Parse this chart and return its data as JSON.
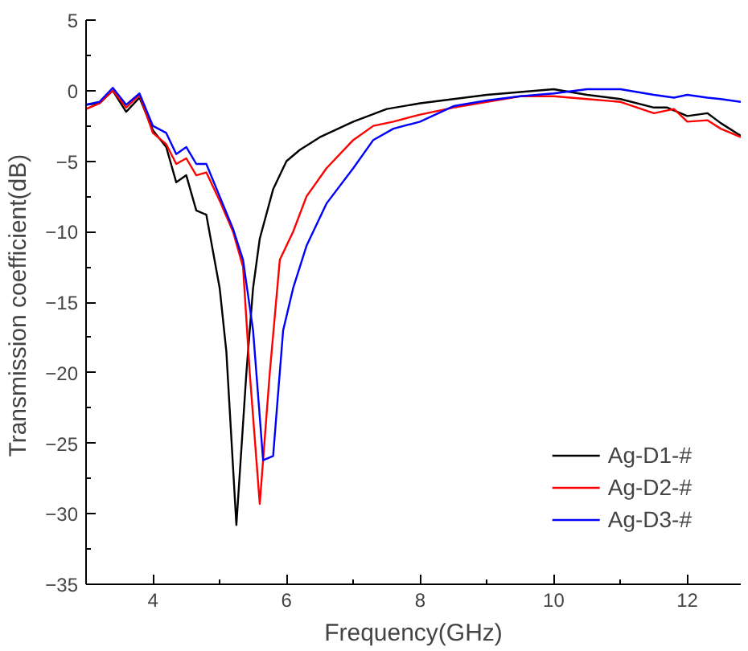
{
  "chart_data": {
    "type": "line",
    "xlabel": "Frequency(GHz)",
    "ylabel": "Transmission  coefficient(dB)",
    "xlim": [
      3,
      12.8
    ],
    "ylim": [
      -35,
      5
    ],
    "xticks": [
      4,
      6,
      8,
      10,
      12
    ],
    "yticks": [
      -35,
      -30,
      -25,
      -20,
      -15,
      -10,
      -5,
      0,
      5
    ],
    "grid": false,
    "legend": "bottom right",
    "series": [
      {
        "name": "Ag-D1-#",
        "color": "#000000",
        "x": [
          3.0,
          3.2,
          3.4,
          3.6,
          3.8,
          4.0,
          4.2,
          4.35,
          4.5,
          4.65,
          4.8,
          5.0,
          5.1,
          5.25,
          5.4,
          5.5,
          5.6,
          5.8,
          6.0,
          6.2,
          6.5,
          7,
          7.5,
          8,
          8.5,
          9,
          9.5,
          10,
          10.5,
          11,
          11.5,
          11.7,
          12,
          12.3,
          12.5,
          12.8
        ],
        "values": [
          -1.0,
          -0.9,
          0.0,
          -1.5,
          -0.5,
          -2.8,
          -4.0,
          -6.5,
          -6.0,
          -8.5,
          -8.8,
          -14,
          -18.5,
          -30.8,
          -20,
          -14,
          -10.5,
          -7,
          -5,
          -4.2,
          -3.3,
          -2.2,
          -1.3,
          -0.9,
          -0.6,
          -0.3,
          -0.1,
          0.1,
          -0.3,
          -0.6,
          -1.2,
          -1.2,
          -1.8,
          -1.6,
          -2.3,
          -3.2
        ]
      },
      {
        "name": "Ag-D2-#",
        "color": "#ff0000",
        "x": [
          3.0,
          3.2,
          3.4,
          3.6,
          3.8,
          4.0,
          4.2,
          4.35,
          4.5,
          4.65,
          4.8,
          5.0,
          5.2,
          5.35,
          5.45,
          5.6,
          5.75,
          5.9,
          6.1,
          6.3,
          6.6,
          7,
          7.3,
          7.6,
          8,
          8.5,
          9,
          9.5,
          10,
          10.5,
          11,
          11.5,
          11.8,
          12,
          12.3,
          12.5,
          12.8
        ],
        "values": [
          -1.3,
          -0.9,
          0.0,
          -1.2,
          -0.3,
          -3.0,
          -3.8,
          -5.2,
          -4.8,
          -6.0,
          -5.8,
          -7.8,
          -10,
          -12.5,
          -20,
          -29.3,
          -20,
          -12,
          -10,
          -7.5,
          -5.5,
          -3.5,
          -2.5,
          -2.2,
          -1.7,
          -1.2,
          -0.8,
          -0.4,
          -0.4,
          -0.6,
          -0.8,
          -1.6,
          -1.3,
          -2.2,
          -2.1,
          -2.7,
          -3.3
        ]
      },
      {
        "name": "Ag-D3-#",
        "color": "#0000ff",
        "x": [
          3.0,
          3.2,
          3.4,
          3.6,
          3.8,
          4.0,
          4.2,
          4.35,
          4.5,
          4.65,
          4.8,
          5.0,
          5.2,
          5.35,
          5.5,
          5.65,
          5.8,
          5.95,
          6.1,
          6.3,
          6.6,
          7,
          7.3,
          7.6,
          8,
          8.5,
          9,
          9.5,
          10,
          10.5,
          11,
          11.5,
          11.8,
          12,
          12.3,
          12.5,
          12.8
        ],
        "values": [
          -1.0,
          -0.8,
          0.2,
          -1.0,
          -0.2,
          -2.5,
          -3.0,
          -4.5,
          -4.0,
          -5.2,
          -5.2,
          -7.5,
          -9.8,
          -12,
          -17,
          -26.2,
          -25.9,
          -17,
          -14,
          -11,
          -8,
          -5.5,
          -3.5,
          -2.7,
          -2.2,
          -1.1,
          -0.7,
          -0.4,
          -0.2,
          0.1,
          0.1,
          -0.3,
          -0.5,
          -0.3,
          -0.5,
          -0.6,
          -0.8
        ]
      }
    ]
  }
}
